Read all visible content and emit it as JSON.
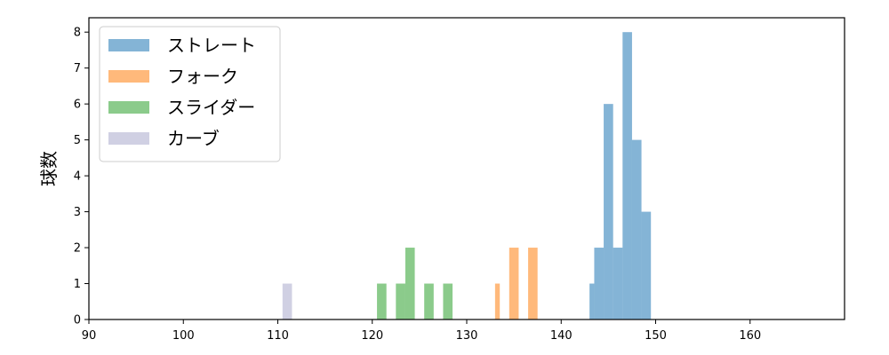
{
  "chart_data": {
    "type": "bar",
    "title": "",
    "xlabel": "",
    "ylabel": "球数",
    "xlim": [
      90,
      170
    ],
    "ylim": [
      0,
      8.4
    ],
    "xticks": [
      90,
      100,
      110,
      120,
      130,
      140,
      150,
      160
    ],
    "yticks": [
      0,
      1,
      2,
      3,
      4,
      5,
      6,
      7,
      8
    ],
    "grid": false,
    "legend_position": "top-left",
    "series": [
      {
        "name": "ストレート",
        "color": "#1f77b4",
        "bins": [
          {
            "x0": 143.0,
            "x1": 143.5,
            "value": 1
          },
          {
            "x0": 143.5,
            "x1": 144.5,
            "value": 2
          },
          {
            "x0": 144.5,
            "x1": 145.5,
            "value": 6
          },
          {
            "x0": 145.5,
            "x1": 146.5,
            "value": 2
          },
          {
            "x0": 146.5,
            "x1": 147.5,
            "value": 8
          },
          {
            "x0": 147.5,
            "x1": 148.5,
            "value": 5
          },
          {
            "x0": 148.5,
            "x1": 149.5,
            "value": 3
          }
        ]
      },
      {
        "name": "フォーク",
        "color": "#ff7f0e",
        "bins": [
          {
            "x0": 133.0,
            "x1": 133.5,
            "value": 1
          },
          {
            "x0": 134.5,
            "x1": 135.5,
            "value": 2
          },
          {
            "x0": 136.5,
            "x1": 137.5,
            "value": 2
          }
        ]
      },
      {
        "name": "スライダー",
        "color": "#2ca02c",
        "bins": [
          {
            "x0": 120.5,
            "x1": 121.5,
            "value": 1
          },
          {
            "x0": 122.5,
            "x1": 123.5,
            "value": 1
          },
          {
            "x0": 123.5,
            "x1": 124.5,
            "value": 2
          },
          {
            "x0": 125.5,
            "x1": 126.5,
            "value": 1
          },
          {
            "x0": 127.5,
            "x1": 128.5,
            "value": 1
          }
        ]
      },
      {
        "name": "カーブ",
        "color": "#aaaacc",
        "bins": [
          {
            "x0": 110.5,
            "x1": 111.5,
            "value": 1
          }
        ]
      }
    ]
  }
}
